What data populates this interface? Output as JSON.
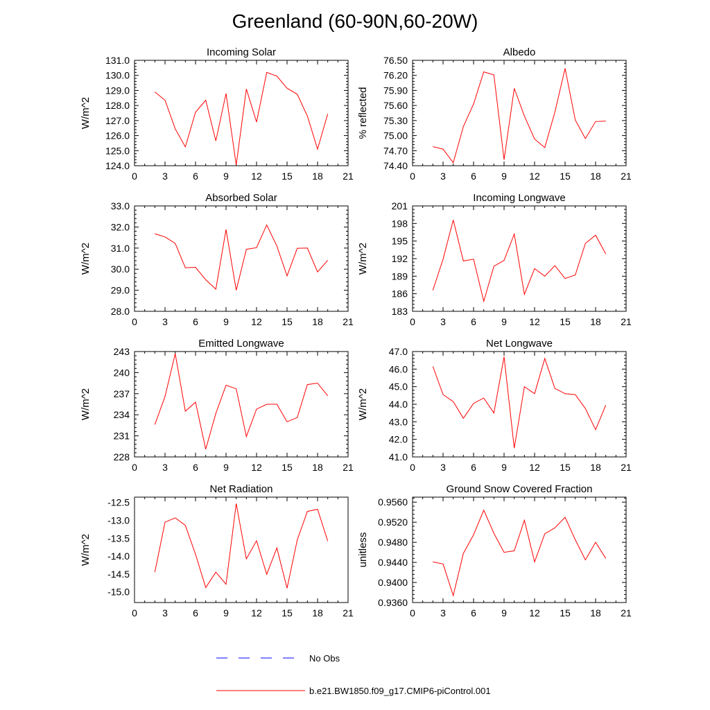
{
  "title": "Greenland (60-90N,60-20W)",
  "colors": {
    "series": "#ff0000",
    "obs": "#0000ff",
    "axis": "#000000"
  },
  "legend": [
    {
      "label": "No Obs",
      "style": "dashed",
      "color": "#0000ff"
    },
    {
      "label": "b.e21.BW1850.f09_g17.CMIP6-piControl.001",
      "style": "solid",
      "color": "#ff0000"
    }
  ],
  "chart_data": [
    {
      "type": "line",
      "title": "Incoming Solar",
      "ylabel": "W/m^2",
      "xlim": [
        0,
        21
      ],
      "xticks": [
        0,
        3,
        6,
        9,
        12,
        15,
        18,
        21
      ],
      "ylim": [
        124.0,
        131.0
      ],
      "yticks": [
        "124.0",
        "125.0",
        "126.0",
        "127.0",
        "128.0",
        "129.0",
        "130.0",
        "131.0"
      ],
      "x": [
        2,
        3,
        4,
        5,
        6,
        7,
        8,
        9,
        10,
        11,
        12,
        13,
        14,
        15,
        16,
        17,
        18,
        19
      ],
      "values": [
        128.9,
        128.35,
        126.45,
        125.25,
        127.55,
        128.35,
        125.65,
        128.8,
        124.05,
        129.1,
        126.9,
        130.2,
        129.95,
        129.15,
        128.75,
        127.3,
        125.1,
        127.45
      ]
    },
    {
      "type": "line",
      "title": "Albedo",
      "ylabel": "% reflected",
      "xlim": [
        0,
        21
      ],
      "xticks": [
        0,
        3,
        6,
        9,
        12,
        15,
        18,
        21
      ],
      "ylim": [
        74.4,
        76.5
      ],
      "yticks": [
        "74.40",
        "74.70",
        "75.00",
        "75.30",
        "75.60",
        "75.90",
        "76.20",
        "76.50"
      ],
      "x": [
        2,
        3,
        4,
        5,
        6,
        7,
        8,
        9,
        10,
        11,
        12,
        13,
        14,
        15,
        16,
        17,
        18,
        19
      ],
      "values": [
        74.78,
        74.73,
        74.46,
        75.18,
        75.63,
        76.27,
        76.21,
        74.52,
        75.94,
        75.39,
        74.93,
        74.76,
        75.47,
        76.34,
        75.31,
        74.94,
        75.28,
        75.29
      ]
    },
    {
      "type": "line",
      "title": "Absorbed Solar",
      "ylabel": "W/m^2",
      "xlim": [
        0,
        21
      ],
      "xticks": [
        0,
        3,
        6,
        9,
        12,
        15,
        18,
        21
      ],
      "ylim": [
        28.0,
        33.0
      ],
      "yticks": [
        "28.0",
        "29.0",
        "30.0",
        "31.0",
        "32.0",
        "33.0"
      ],
      "x": [
        2,
        3,
        4,
        5,
        6,
        7,
        8,
        9,
        10,
        11,
        12,
        13,
        14,
        15,
        16,
        17,
        18,
        19
      ],
      "values": [
        31.68,
        31.53,
        31.22,
        30.07,
        30.09,
        29.5,
        29.05,
        31.88,
        29.0,
        30.94,
        31.02,
        32.1,
        31.1,
        29.68,
        30.99,
        31.0,
        29.87,
        30.42
      ]
    },
    {
      "type": "line",
      "title": "Incoming Longwave",
      "ylabel": "W/m^2",
      "xlim": [
        0,
        21
      ],
      "xticks": [
        0,
        3,
        6,
        9,
        12,
        15,
        18,
        21
      ],
      "ylim": [
        183,
        201
      ],
      "yticks": [
        "183",
        "186",
        "189",
        "192",
        "195",
        "198",
        "201"
      ],
      "x": [
        2,
        3,
        4,
        5,
        6,
        7,
        8,
        9,
        10,
        11,
        12,
        13,
        14,
        15,
        16,
        17,
        18,
        19
      ],
      "values": [
        186.6,
        191.9,
        198.6,
        191.6,
        191.9,
        184.7,
        190.7,
        191.7,
        196.2,
        185.9,
        190.3,
        189.0,
        190.8,
        188.6,
        189.2,
        194.6,
        196.0,
        192.8
      ]
    },
    {
      "type": "line",
      "title": "Emitted Longwave",
      "ylabel": "W/m^2",
      "xlim": [
        0,
        21
      ],
      "xticks": [
        0,
        3,
        6,
        9,
        12,
        15,
        18,
        21
      ],
      "ylim": [
        228,
        243
      ],
      "yticks": [
        "228",
        "231",
        "234",
        "237",
        "240",
        "243"
      ],
      "x": [
        2,
        3,
        4,
        5,
        6,
        7,
        8,
        9,
        10,
        11,
        12,
        13,
        14,
        15,
        16,
        17,
        18,
        19
      ],
      "values": [
        232.6,
        236.6,
        242.7,
        234.5,
        235.8,
        229.1,
        234.2,
        238.2,
        237.7,
        230.9,
        234.8,
        235.5,
        235.5,
        233.0,
        233.6,
        238.3,
        238.5,
        236.7
      ]
    },
    {
      "type": "line",
      "title": "Net Longwave",
      "ylabel": "W/m^2",
      "xlim": [
        0,
        21
      ],
      "xticks": [
        0,
        3,
        6,
        9,
        12,
        15,
        18,
        21
      ],
      "ylim": [
        41.0,
        47.0
      ],
      "yticks": [
        "41.0",
        "42.0",
        "43.0",
        "44.0",
        "45.0",
        "46.0",
        "47.0"
      ],
      "x": [
        2,
        3,
        4,
        5,
        6,
        7,
        8,
        9,
        10,
        11,
        12,
        13,
        14,
        15,
        16,
        17,
        18,
        19
      ],
      "values": [
        46.15,
        44.55,
        44.15,
        43.2,
        44.05,
        44.35,
        43.5,
        46.7,
        41.5,
        45.0,
        44.6,
        46.6,
        44.9,
        44.6,
        44.55,
        43.75,
        42.55,
        43.95
      ]
    },
    {
      "type": "line",
      "title": "Net Radiation",
      "ylabel": "W/m^2",
      "xlim": [
        0,
        21
      ],
      "xticks": [
        0,
        3,
        6,
        9,
        12,
        15,
        18,
        21
      ],
      "ylim": [
        -15.3,
        -12.35
      ],
      "yticks": [
        "-12.5",
        "-13.0",
        "-13.5",
        "-14.0",
        "-14.5",
        "-15.0"
      ],
      "x": [
        2,
        3,
        4,
        5,
        6,
        7,
        8,
        9,
        10,
        11,
        12,
        13,
        14,
        15,
        16,
        17,
        18,
        19
      ],
      "values": [
        -14.45,
        -13.05,
        -12.93,
        -13.14,
        -13.95,
        -14.88,
        -14.45,
        -14.79,
        -12.53,
        -14.08,
        -13.57,
        -14.51,
        -13.77,
        -14.9,
        -13.55,
        -12.75,
        -12.69,
        -13.58
      ]
    },
    {
      "type": "line",
      "title": "Ground Snow Covered Fraction",
      "ylabel": "unitless",
      "xlim": [
        0,
        21
      ],
      "xticks": [
        0,
        3,
        6,
        9,
        12,
        15,
        18,
        21
      ],
      "ylim": [
        0.936,
        0.957
      ],
      "yticks": [
        "0.9360",
        "0.9400",
        "0.9440",
        "0.9480",
        "0.9520",
        "0.9560"
      ],
      "x": [
        2,
        3,
        4,
        5,
        6,
        7,
        8,
        9,
        10,
        11,
        12,
        13,
        14,
        15,
        16,
        17,
        18,
        19
      ],
      "values": [
        0.9441,
        0.9437,
        0.9374,
        0.9458,
        0.9495,
        0.9544,
        0.9498,
        0.946,
        0.9463,
        0.9524,
        0.9441,
        0.9497,
        0.9509,
        0.953,
        0.9485,
        0.9445,
        0.948,
        0.9448
      ]
    }
  ]
}
